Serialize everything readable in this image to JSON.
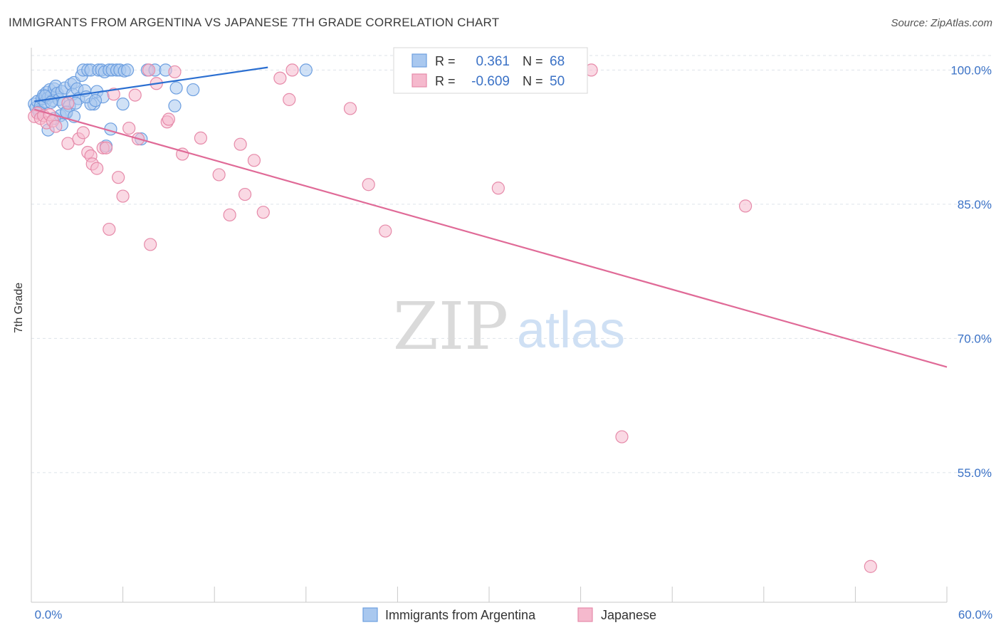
{
  "title": "IMMIGRANTS FROM ARGENTINA VS JAPANESE 7TH GRADE CORRELATION CHART",
  "source": "Source: ZipAtlas.com",
  "watermark": {
    "zip": "ZIP",
    "atlas": "atlas"
  },
  "colors": {
    "blue_fill": "#a9c8ef",
    "blue_stroke": "#6d9fe0",
    "blue_line": "#2b6fd1",
    "pink_fill": "#f5b9cd",
    "pink_stroke": "#e68aa9",
    "pink_line": "#e06a97",
    "tick_label": "#3b72c6",
    "grid": "#dde3ea"
  },
  "legend_top": [
    {
      "r_label": "R =",
      "r_value": "0.361",
      "n_label": "N =",
      "n_value": "68"
    },
    {
      "r_label": "R =",
      "r_value": "-0.609",
      "n_label": "N =",
      "n_value": "50"
    }
  ],
  "chart_data": {
    "type": "scatter",
    "title": "IMMIGRANTS FROM ARGENTINA VS JAPANESE 7TH GRADE CORRELATION CHART",
    "xlabel": "",
    "ylabel": "7th Grade",
    "xlim": [
      0,
      60
    ],
    "ylim": [
      40.5,
      102.5
    ],
    "x_tick_labels": [
      "0.0%",
      "60.0%"
    ],
    "y_ticks": [
      100,
      85,
      70,
      55
    ],
    "y_tick_labels": [
      "100.0%",
      "85.0%",
      "70.0%",
      "55.0%"
    ],
    "grid": true,
    "legend_position": "bottom-center",
    "series": [
      {
        "name": "Immigrants from Argentina",
        "color": "#a9c8ef",
        "trend": {
          "x": [
            0.2,
            15.5
          ],
          "y": [
            96.5,
            100.3
          ]
        },
        "points": [
          [
            0.2,
            96.2
          ],
          [
            0.3,
            95.8
          ],
          [
            0.4,
            96.5
          ],
          [
            0.5,
            95.5
          ],
          [
            0.6,
            96.0
          ],
          [
            0.7,
            96.8
          ],
          [
            0.8,
            97.2
          ],
          [
            0.9,
            96.4
          ],
          [
            1.0,
            97.5
          ],
          [
            1.1,
            96.9
          ],
          [
            1.2,
            97.8
          ],
          [
            1.3,
            97.1
          ],
          [
            1.4,
            96.6
          ],
          [
            1.5,
            97.9
          ],
          [
            1.6,
            98.2
          ],
          [
            1.7,
            97.4
          ],
          [
            1.8,
            96.7
          ],
          [
            1.9,
            94.9
          ],
          [
            2.0,
            97.6
          ],
          [
            2.1,
            96.3
          ],
          [
            2.2,
            98.0
          ],
          [
            2.3,
            95.2
          ],
          [
            2.5,
            96.0
          ],
          [
            2.6,
            98.4
          ],
          [
            2.7,
            97.3
          ],
          [
            2.8,
            98.6
          ],
          [
            3.0,
            97.9
          ],
          [
            3.1,
            96.8
          ],
          [
            3.3,
            99.4
          ],
          [
            3.4,
            100.0
          ],
          [
            3.5,
            97.7
          ],
          [
            3.7,
            100.0
          ],
          [
            3.9,
            100.0
          ],
          [
            4.1,
            96.2
          ],
          [
            4.3,
            97.6
          ],
          [
            4.4,
            100.0
          ],
          [
            4.6,
            100.0
          ],
          [
            4.8,
            99.8
          ],
          [
            5.1,
            100.0
          ],
          [
            5.3,
            100.0
          ],
          [
            5.6,
            100.0
          ],
          [
            5.8,
            100.0
          ],
          [
            6.1,
            99.9
          ],
          [
            6.3,
            100.0
          ],
          [
            7.6,
            100.0
          ],
          [
            8.1,
            100.0
          ],
          [
            8.8,
            100.0
          ],
          [
            9.5,
            98.0
          ],
          [
            10.6,
            97.8
          ],
          [
            18.0,
            100.0
          ],
          [
            1.1,
            93.3
          ],
          [
            2.0,
            93.9
          ],
          [
            2.3,
            95.3
          ],
          [
            5.2,
            93.4
          ],
          [
            4.7,
            97.0
          ],
          [
            3.9,
            96.2
          ],
          [
            2.8,
            94.8
          ],
          [
            1.5,
            94.6
          ],
          [
            7.2,
            92.3
          ],
          [
            6.0,
            96.2
          ],
          [
            4.9,
            91.5
          ],
          [
            9.4,
            96.0
          ],
          [
            0.5,
            95.3
          ],
          [
            0.9,
            97.1
          ],
          [
            1.3,
            96.4
          ],
          [
            2.9,
            96.3
          ],
          [
            3.6,
            97.0
          ],
          [
            4.2,
            96.6
          ]
        ]
      },
      {
        "name": "Japanese",
        "color": "#f5b9cd",
        "trend": {
          "x": [
            0.2,
            60.0
          ],
          "y": [
            95.6,
            66.8
          ]
        },
        "points": [
          [
            0.2,
            94.8
          ],
          [
            0.4,
            95.2
          ],
          [
            0.6,
            94.6
          ],
          [
            0.8,
            94.9
          ],
          [
            1.0,
            94.1
          ],
          [
            1.2,
            95.0
          ],
          [
            1.4,
            94.3
          ],
          [
            1.6,
            93.7
          ],
          [
            2.4,
            96.3
          ],
          [
            2.4,
            91.8
          ],
          [
            3.1,
            92.3
          ],
          [
            3.4,
            93.0
          ],
          [
            3.7,
            90.8
          ],
          [
            3.9,
            90.4
          ],
          [
            4.0,
            89.5
          ],
          [
            4.3,
            89.0
          ],
          [
            4.7,
            91.3
          ],
          [
            4.9,
            91.3
          ],
          [
            5.1,
            82.2
          ],
          [
            5.4,
            97.3
          ],
          [
            5.7,
            88.0
          ],
          [
            6.0,
            85.9
          ],
          [
            6.4,
            93.5
          ],
          [
            6.8,
            97.2
          ],
          [
            7.0,
            92.3
          ],
          [
            7.7,
            100.0
          ],
          [
            7.8,
            80.5
          ],
          [
            8.2,
            98.5
          ],
          [
            8.9,
            94.2
          ],
          [
            9.0,
            94.5
          ],
          [
            9.4,
            99.8
          ],
          [
            9.9,
            90.6
          ],
          [
            11.1,
            92.4
          ],
          [
            12.3,
            88.3
          ],
          [
            13.0,
            83.8
          ],
          [
            13.7,
            91.7
          ],
          [
            14.0,
            86.1
          ],
          [
            14.6,
            89.9
          ],
          [
            15.2,
            84.1
          ],
          [
            16.3,
            99.1
          ],
          [
            16.9,
            96.7
          ],
          [
            17.1,
            100.0
          ],
          [
            20.9,
            95.7
          ],
          [
            22.1,
            87.2
          ],
          [
            23.2,
            82.0
          ],
          [
            30.6,
            86.8
          ],
          [
            36.7,
            100.0
          ],
          [
            46.8,
            84.8
          ],
          [
            38.7,
            59.0
          ],
          [
            55.0,
            44.5
          ]
        ]
      }
    ]
  },
  "legend_bottom": [
    {
      "label": "Immigrants from Argentina"
    },
    {
      "label": "Japanese"
    }
  ]
}
